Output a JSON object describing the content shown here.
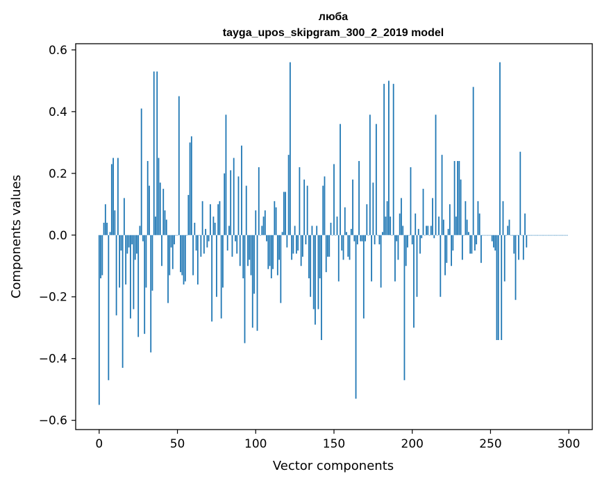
{
  "chart_data": {
    "type": "bar",
    "title": "люба",
    "subtitle": "tayga_upos_skipgram_300_2_2019 model",
    "xlabel": "Vector components",
    "ylabel": "Components values",
    "xlim": [
      -15,
      315
    ],
    "ylim": [
      -0.63,
      0.62
    ],
    "xticks": [
      0,
      50,
      100,
      150,
      200,
      250,
      300
    ],
    "xtick_labels": [
      "0",
      "50",
      "100",
      "150",
      "200",
      "250",
      "300"
    ],
    "yticks": [
      -0.6,
      -0.4,
      -0.2,
      0.0,
      0.2,
      0.4,
      0.6
    ],
    "ytick_labels": [
      "−0.6",
      "−0.4",
      "−0.2",
      "0.0",
      "0.2",
      "0.4",
      "0.6"
    ],
    "bar_color": "#1f77b4",
    "grid": false,
    "legend": "none",
    "x": [
      0,
      1,
      2,
      3,
      4,
      5,
      6,
      7,
      8,
      9,
      10,
      11,
      12,
      13,
      14,
      15,
      16,
      17,
      18,
      19,
      20,
      21,
      22,
      23,
      24,
      25,
      26,
      27,
      28,
      29,
      30,
      31,
      32,
      33,
      34,
      35,
      36,
      37,
      38,
      39,
      40,
      41,
      42,
      43,
      44,
      45,
      46,
      47,
      48,
      49,
      50,
      51,
      52,
      53,
      54,
      55,
      56,
      57,
      58,
      59,
      60,
      61,
      62,
      63,
      64,
      65,
      66,
      67,
      68,
      69,
      70,
      71,
      72,
      73,
      74,
      75,
      76,
      77,
      78,
      79,
      80,
      81,
      82,
      83,
      84,
      85,
      86,
      87,
      88,
      89,
      90,
      91,
      92,
      93,
      94,
      95,
      96,
      97,
      98,
      99,
      100,
      101,
      102,
      103,
      104,
      105,
      106,
      107,
      108,
      109,
      110,
      111,
      112,
      113,
      114,
      115,
      116,
      117,
      118,
      119,
      120,
      121,
      122,
      123,
      124,
      125,
      126,
      127,
      128,
      129,
      130,
      131,
      132,
      133,
      134,
      135,
      136,
      137,
      138,
      139,
      140,
      141,
      142,
      143,
      144,
      145,
      146,
      147,
      148,
      149,
      150,
      151,
      152,
      153,
      154,
      155,
      156,
      157,
      158,
      159,
      160,
      161,
      162,
      163,
      164,
      165,
      166,
      167,
      168,
      169,
      170,
      171,
      172,
      173,
      174,
      175,
      176,
      177,
      178,
      179,
      180,
      181,
      182,
      183,
      184,
      185,
      186,
      187,
      188,
      189,
      190,
      191,
      192,
      193,
      194,
      195,
      196,
      197,
      198,
      199,
      200,
      201,
      202,
      203,
      204,
      205,
      206,
      207,
      208,
      209,
      210,
      211,
      212,
      213,
      214,
      215,
      216,
      217,
      218,
      219,
      220,
      221,
      222,
      223,
      224,
      225,
      226,
      227,
      228,
      229,
      230,
      231,
      232,
      233,
      234,
      235,
      236,
      237,
      238,
      239,
      240,
      241,
      242,
      243,
      244,
      245,
      246,
      247,
      248,
      249,
      250,
      251,
      252,
      253,
      254,
      255,
      256,
      257,
      258,
      259,
      260,
      261,
      262,
      263,
      264,
      265,
      266,
      267,
      268,
      269,
      270,
      271,
      272,
      273,
      274,
      275,
      276,
      277,
      278,
      279,
      280,
      281,
      282,
      283,
      284,
      285,
      286,
      287,
      288,
      289,
      290,
      291,
      292,
      293,
      294,
      295,
      296,
      297,
      298,
      299
    ],
    "values": [
      -0.55,
      -0.14,
      -0.13,
      0.04,
      0.1,
      0.04,
      -0.47,
      0.01,
      0.23,
      0.25,
      0.08,
      -0.26,
      0.25,
      -0.17,
      -0.05,
      -0.43,
      0.12,
      -0.16,
      -0.06,
      -0.04,
      -0.27,
      -0.03,
      -0.24,
      -0.08,
      -0.06,
      -0.33,
      0.03,
      0.41,
      -0.02,
      -0.32,
      -0.17,
      0.24,
      0.16,
      -0.38,
      -0.18,
      0.53,
      0.06,
      0.53,
      0.25,
      0.17,
      -0.1,
      0.15,
      0.08,
      0.05,
      -0.22,
      -0.13,
      -0.04,
      -0.11,
      -0.03,
      0.0,
      0.0,
      0.45,
      -0.12,
      -0.13,
      -0.16,
      -0.15,
      0.0,
      0.13,
      0.3,
      0.32,
      -0.13,
      0.04,
      -0.05,
      -0.16,
      0.0,
      -0.07,
      0.11,
      -0.06,
      0.02,
      -0.04,
      -0.02,
      0.1,
      -0.28,
      0.06,
      0.04,
      -0.2,
      0.1,
      0.11,
      -0.27,
      -0.17,
      0.2,
      0.39,
      -0.05,
      0.03,
      0.21,
      -0.07,
      0.25,
      -0.02,
      -0.06,
      0.19,
      -0.1,
      0.29,
      -0.14,
      -0.35,
      0.16,
      -0.1,
      -0.08,
      -0.13,
      -0.3,
      -0.19,
      0.08,
      -0.31,
      0.22,
      0.0,
      0.03,
      0.06,
      0.08,
      -0.02,
      -0.11,
      -0.1,
      -0.14,
      -0.11,
      0.11,
      0.09,
      -0.13,
      -0.08,
      -0.22,
      0.01,
      0.14,
      0.14,
      -0.04,
      0.26,
      0.56,
      -0.08,
      -0.06,
      0.03,
      -0.06,
      -0.05,
      0.22,
      -0.1,
      -0.07,
      0.18,
      -0.03,
      0.16,
      -0.14,
      -0.2,
      0.03,
      -0.24,
      -0.29,
      0.03,
      -0.24,
      -0.14,
      -0.34,
      0.16,
      0.19,
      -0.12,
      -0.07,
      -0.07,
      0.04,
      0.0,
      0.23,
      0.0,
      0.06,
      -0.15,
      0.36,
      -0.05,
      -0.08,
      0.09,
      0.01,
      -0.07,
      -0.08,
      0.02,
      0.18,
      -0.02,
      -0.53,
      -0.03,
      0.24,
      -0.02,
      -0.02,
      -0.27,
      -0.02,
      0.1,
      0.0,
      0.39,
      -0.15,
      0.17,
      -0.03,
      0.36,
      0.0,
      -0.03,
      -0.17,
      0.01,
      0.49,
      0.06,
      0.11,
      0.5,
      0.06,
      0.0,
      0.49,
      -0.15,
      -0.02,
      -0.08,
      0.07,
      0.12,
      0.03,
      -0.47,
      -0.1,
      -0.04,
      0.0,
      0.22,
      -0.03,
      -0.3,
      0.07,
      -0.2,
      0.02,
      -0.06,
      -0.01,
      0.15,
      0.0,
      0.03,
      0.03,
      0.0,
      0.03,
      0.12,
      -0.01,
      0.39,
      0.0,
      0.06,
      -0.2,
      0.26,
      0.05,
      -0.13,
      -0.09,
      0.02,
      0.1,
      -0.1,
      -0.05,
      0.24,
      0.06,
      0.24,
      0.24,
      0.18,
      -0.08,
      0.0,
      0.11,
      0.05,
      0.01,
      -0.06,
      -0.06,
      0.48,
      -0.05,
      -0.03,
      0.11,
      0.07,
      -0.09,
      0.0,
      0.0,
      0.0,
      0.0,
      0.0,
      0.0,
      -0.02,
      -0.04,
      -0.05,
      -0.34,
      -0.34,
      0.56,
      -0.34,
      0.11,
      -0.15,
      0.0,
      0.03,
      0.05,
      0.0,
      0.0,
      -0.06,
      -0.21,
      0.0,
      -0.08,
      0.27,
      0.0,
      -0.08,
      0.07,
      -0.04,
      0.0,
      0.0,
      0.0,
      0.0,
      0.0,
      0.0,
      0.0,
      0.0,
      0.0,
      0.0,
      0.0,
      0.0,
      0.0,
      0.0,
      0.0,
      0.0,
      0.0,
      0.0,
      0.0,
      0.0,
      0.0,
      0.0,
      0.0,
      0.0,
      0.0,
      0.0
    ]
  }
}
